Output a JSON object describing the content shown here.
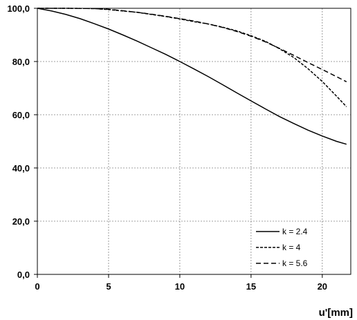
{
  "chart_data": {
    "type": "line",
    "title": "",
    "xlabel": "u'[mm]",
    "ylabel": "",
    "xlim": [
      0,
      22
    ],
    "ylim": [
      0,
      100
    ],
    "xticks": [
      0,
      5,
      10,
      15,
      20
    ],
    "xtick_labels": [
      "0",
      "5",
      "10",
      "15",
      "20"
    ],
    "yticks": [
      0,
      20,
      40,
      60,
      80,
      100
    ],
    "ytick_labels": [
      "0,0",
      "20,0",
      "40,0",
      "60,0",
      "80,0",
      "100,0"
    ],
    "grid": true,
    "legend_position": "bottom-right",
    "series": [
      {
        "name": "k = 2.4",
        "dash": "solid",
        "x": [
          0,
          1,
          2,
          3,
          4,
          5,
          6,
          7,
          8,
          9,
          10,
          11,
          12,
          13,
          14,
          15,
          16,
          17,
          18,
          19,
          20,
          21,
          21.7
        ],
        "y": [
          100,
          99.0,
          97.7,
          96.1,
          94.2,
          92.2,
          90.0,
          87.7,
          85.2,
          82.7,
          80.0,
          77.2,
          74.3,
          71.3,
          68.2,
          65.2,
          62.2,
          59.3,
          56.7,
          54.2,
          52.0,
          50.0,
          48.9
        ]
      },
      {
        "name": "k = 4",
        "dash": "short",
        "x": [
          0,
          2,
          4,
          5,
          6,
          7,
          8,
          9,
          10,
          11,
          12,
          13,
          14,
          15,
          16,
          17,
          18,
          19,
          20,
          21,
          21.7
        ],
        "y": [
          100,
          100,
          99.9,
          99.5,
          99.0,
          98.5,
          97.7,
          96.9,
          96.0,
          95.0,
          94.1,
          92.9,
          91.5,
          89.7,
          87.6,
          84.8,
          81.5,
          77.3,
          72.5,
          67.0,
          63.0
        ]
      },
      {
        "name": "k = 5.6",
        "dash": "long",
        "x": [
          0,
          2,
          4,
          5,
          6,
          7,
          8,
          9,
          10,
          11,
          12,
          13,
          14,
          15,
          16,
          17,
          18,
          19,
          20,
          21,
          21.7
        ],
        "y": [
          100,
          100,
          99.9,
          99.6,
          99.1,
          98.5,
          97.8,
          97.0,
          96.1,
          95.2,
          94.1,
          92.8,
          91.3,
          89.5,
          87.4,
          84.9,
          82.3,
          79.6,
          77.0,
          74.3,
          72.4
        ]
      }
    ]
  }
}
